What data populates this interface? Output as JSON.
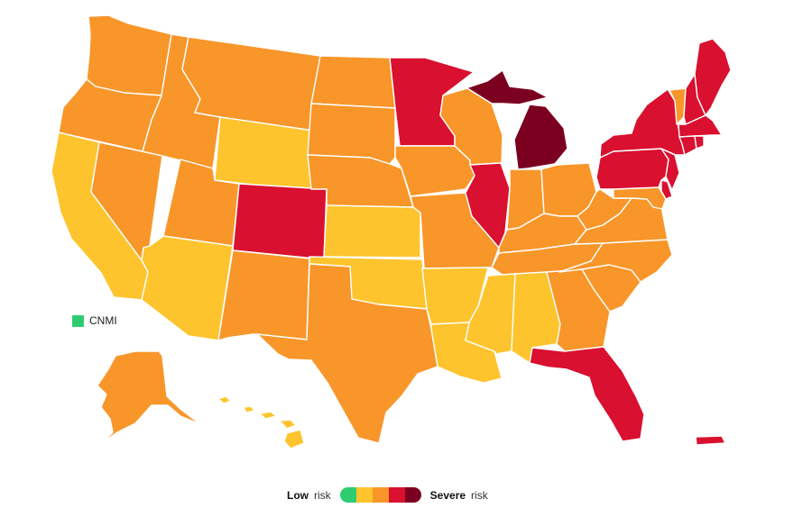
{
  "palette": {
    "green": "#2ecc71",
    "yellow": "#fec42d",
    "orange": "#f8962a",
    "red": "#d9102f",
    "darkred": "#7b0020",
    "outline": "#ffffff"
  },
  "cnmi": {
    "label": "CNMI",
    "level": "green"
  },
  "legend": {
    "low_strong": "Low",
    "low_suffix": "risk",
    "high_strong": "Severe",
    "high_suffix": "risk",
    "scale": [
      "green",
      "yellow",
      "orange",
      "red",
      "darkred"
    ]
  },
  "regions": [
    {
      "id": "WA",
      "level": "orange"
    },
    {
      "id": "OR",
      "level": "orange"
    },
    {
      "id": "CA",
      "level": "yellow"
    },
    {
      "id": "NV",
      "level": "orange"
    },
    {
      "id": "ID",
      "level": "orange"
    },
    {
      "id": "MT",
      "level": "orange"
    },
    {
      "id": "WY",
      "level": "yellow"
    },
    {
      "id": "UT",
      "level": "orange"
    },
    {
      "id": "AZ",
      "level": "yellow"
    },
    {
      "id": "CO",
      "level": "red"
    },
    {
      "id": "NM",
      "level": "orange"
    },
    {
      "id": "ND",
      "level": "orange"
    },
    {
      "id": "SD",
      "level": "orange"
    },
    {
      "id": "NE",
      "level": "orange"
    },
    {
      "id": "KS",
      "level": "yellow"
    },
    {
      "id": "OK",
      "level": "yellow"
    },
    {
      "id": "TX",
      "level": "orange"
    },
    {
      "id": "MN",
      "level": "red"
    },
    {
      "id": "IA",
      "level": "orange"
    },
    {
      "id": "MO",
      "level": "orange"
    },
    {
      "id": "AR",
      "level": "yellow"
    },
    {
      "id": "LA",
      "level": "yellow"
    },
    {
      "id": "WI",
      "level": "orange"
    },
    {
      "id": "IL",
      "level": "red"
    },
    {
      "id": "MI-LP",
      "level": "darkred"
    },
    {
      "id": "MI-UP",
      "level": "darkred"
    },
    {
      "id": "IN",
      "level": "orange"
    },
    {
      "id": "OH",
      "level": "orange"
    },
    {
      "id": "KY",
      "level": "orange"
    },
    {
      "id": "TN",
      "level": "orange"
    },
    {
      "id": "MS",
      "level": "yellow"
    },
    {
      "id": "AL",
      "level": "yellow"
    },
    {
      "id": "GA",
      "level": "orange"
    },
    {
      "id": "FL",
      "level": "red"
    },
    {
      "id": "SC",
      "level": "orange"
    },
    {
      "id": "NC",
      "level": "orange"
    },
    {
      "id": "VA",
      "level": "orange"
    },
    {
      "id": "WV",
      "level": "orange"
    },
    {
      "id": "MD",
      "level": "orange"
    },
    {
      "id": "DE",
      "level": "red"
    },
    {
      "id": "PA",
      "level": "red"
    },
    {
      "id": "NJ",
      "level": "red"
    },
    {
      "id": "NY",
      "level": "red"
    },
    {
      "id": "CT",
      "level": "red"
    },
    {
      "id": "RI",
      "level": "red"
    },
    {
      "id": "MA",
      "level": "red"
    },
    {
      "id": "VT",
      "level": "orange"
    },
    {
      "id": "NH",
      "level": "red"
    },
    {
      "id": "ME",
      "level": "red"
    },
    {
      "id": "AK",
      "level": "orange"
    },
    {
      "id": "HI",
      "level": "yellow"
    },
    {
      "id": "PR",
      "level": "red"
    }
  ]
}
